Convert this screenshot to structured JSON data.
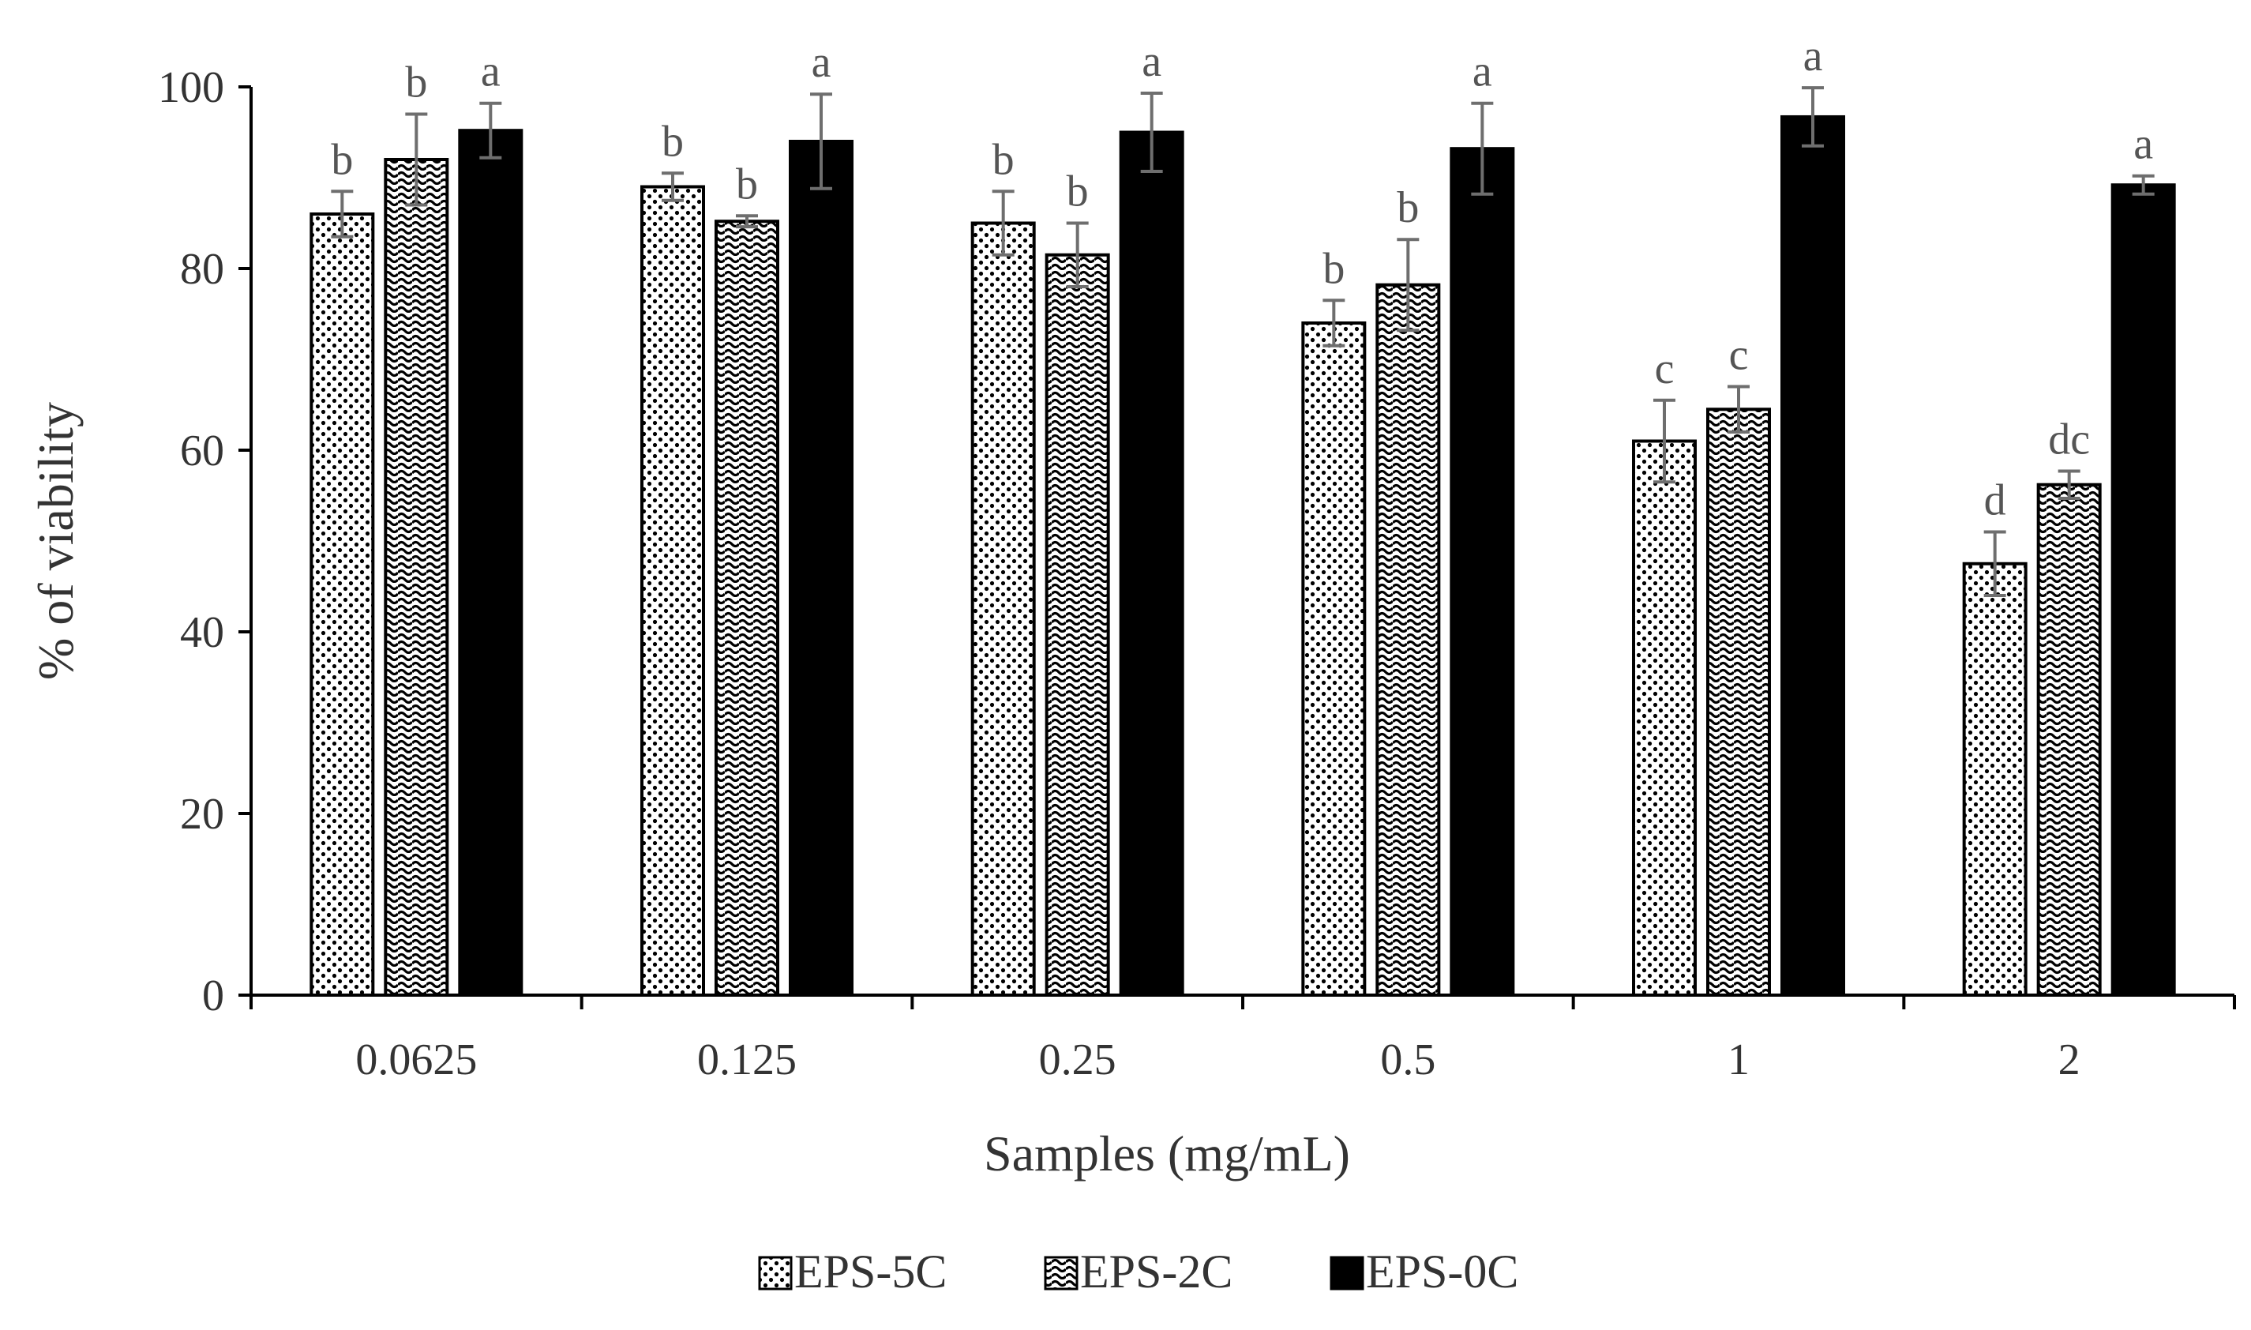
{
  "chart_data": {
    "type": "bar",
    "title": "",
    "xlabel": "Samples (mg/mL)",
    "ylabel": "% of viability",
    "ylim": [
      0,
      100
    ],
    "yticks": [
      "0",
      "20",
      "40",
      "60",
      "80",
      "100"
    ],
    "categories": [
      "0.0625",
      "0.125",
      "0.25",
      "0.5",
      "1",
      "2"
    ],
    "legend_position": "bottom",
    "series": [
      {
        "name": "EPS-5C",
        "pattern": "dots",
        "values": [
          86,
          89,
          85,
          74,
          61,
          47.5
        ],
        "errors": [
          2.5,
          1.5,
          3.5,
          2.5,
          4.5,
          3.5
        ],
        "labels": [
          "b",
          "b",
          "b",
          "b",
          "c",
          "d"
        ]
      },
      {
        "name": "EPS-2C",
        "pattern": "waves",
        "values": [
          92,
          85.2,
          81.5,
          78.2,
          64.5,
          56.2
        ],
        "errors": [
          5,
          0.6,
          3.5,
          5,
          2.5,
          1.5
        ],
        "labels": [
          "b",
          "b",
          "b",
          "b",
          "c",
          "dc"
        ]
      },
      {
        "name": "EPS-0C",
        "pattern": "solid",
        "values": [
          95.2,
          94,
          95,
          93.2,
          96.7,
          89.2
        ],
        "errors": [
          3,
          5.2,
          4.3,
          5,
          3.2,
          1
        ],
        "labels": [
          "a",
          "a",
          "a",
          "a",
          "a",
          "a"
        ]
      }
    ]
  },
  "colors": {
    "bar_outline": "#000000",
    "error_bar": "#6e6e6e",
    "axis": "#000000",
    "text": "#333333"
  }
}
